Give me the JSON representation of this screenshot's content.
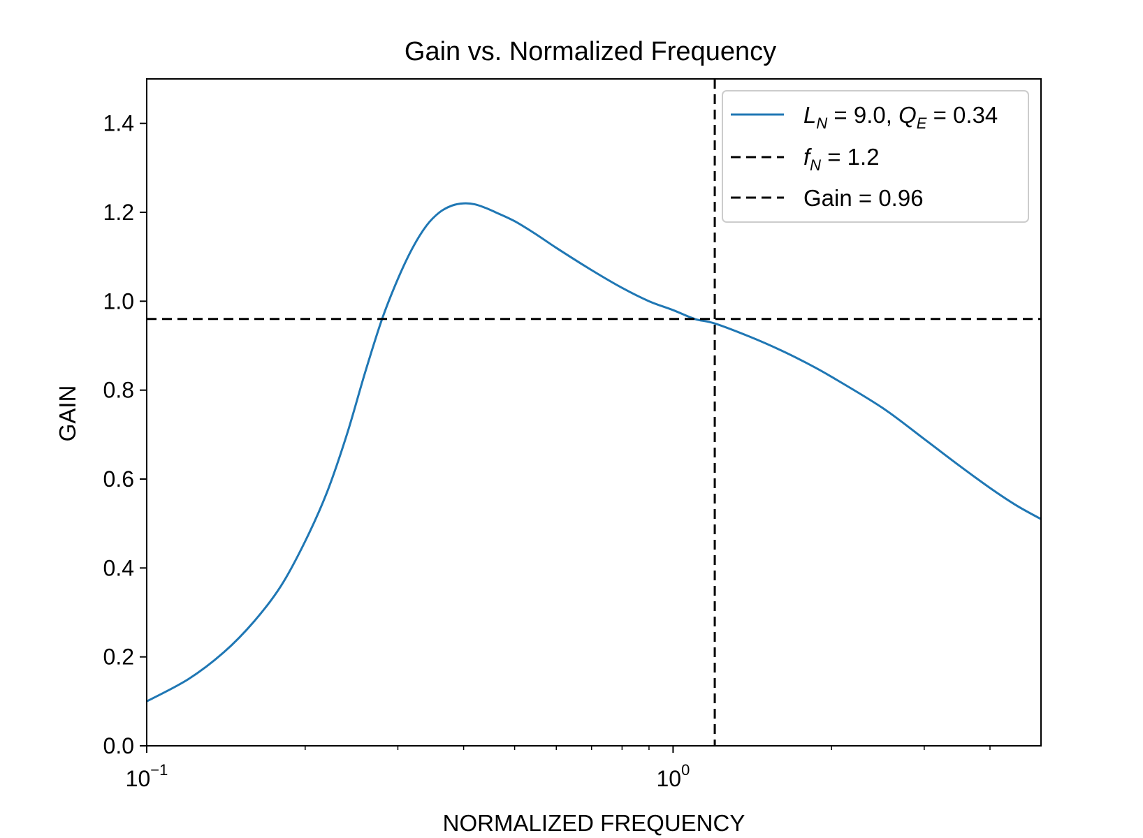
{
  "chart_data": {
    "type": "line",
    "title": "Gain vs. Normalized Frequency",
    "xlabel": "NORMALIZED FREQUENCY",
    "ylabel": "GAIN",
    "xscale": "log",
    "xlim": [
      0.1,
      5.0
    ],
    "ylim": [
      0.0,
      1.5
    ],
    "yticks": [
      0.0,
      0.2,
      0.4,
      0.6,
      0.8,
      1.0,
      1.2,
      1.4
    ],
    "ytick_labels": [
      "0.0",
      "0.2",
      "0.4",
      "0.6",
      "0.8",
      "1.0",
      "1.2",
      "1.4"
    ],
    "xticks_major": [
      0.1,
      1.0
    ],
    "xtick_major_labels": [
      {
        "base": "10",
        "exp": "−1"
      },
      {
        "base": "10",
        "exp": "0"
      }
    ],
    "xticks_minor": [
      0.2,
      0.3,
      0.4,
      0.5,
      0.6,
      0.7,
      0.8,
      0.9,
      2,
      3,
      4
    ],
    "grid": false,
    "legend_position": "top-right",
    "series": [
      {
        "name": "L_N = 9.0, Q_E = 0.34",
        "style": "solid",
        "color": "#1f77b4",
        "x": [
          0.1,
          0.12,
          0.14,
          0.16,
          0.18,
          0.2,
          0.22,
          0.24,
          0.26,
          0.28,
          0.3,
          0.32,
          0.34,
          0.36,
          0.38,
          0.4,
          0.42,
          0.44,
          0.46,
          0.5,
          0.55,
          0.6,
          0.7,
          0.8,
          0.9,
          1.0,
          1.1,
          1.2,
          1.4,
          1.6,
          1.8,
          2.0,
          2.5,
          3.0,
          3.5,
          4.0,
          4.5,
          5.0
        ],
        "y": [
          0.1,
          0.15,
          0.21,
          0.28,
          0.36,
          0.46,
          0.57,
          0.7,
          0.84,
          0.96,
          1.05,
          1.12,
          1.17,
          1.2,
          1.215,
          1.22,
          1.218,
          1.21,
          1.2,
          1.18,
          1.15,
          1.12,
          1.07,
          1.03,
          1.0,
          0.98,
          0.96,
          0.95,
          0.92,
          0.89,
          0.86,
          0.83,
          0.76,
          0.69,
          0.63,
          0.58,
          0.54,
          0.51
        ]
      },
      {
        "name": "f_N = 1.2",
        "style": "dashed-vertical",
        "color": "#000000",
        "x_value": 1.2
      },
      {
        "name": "Gain = 0.96",
        "style": "dashed-horizontal",
        "color": "#000000",
        "y_value": 0.96
      }
    ],
    "legend": {
      "entry1": {
        "L": "L",
        "L_sub": "N",
        "mid": " = 9.0, ",
        "Q": "Q",
        "Q_sub": "E",
        "end": " = 0.34"
      },
      "entry2": {
        "f": "f",
        "f_sub": "N",
        "end": " = 1.2"
      },
      "entry3": {
        "text": "Gain = 0.96"
      }
    }
  }
}
